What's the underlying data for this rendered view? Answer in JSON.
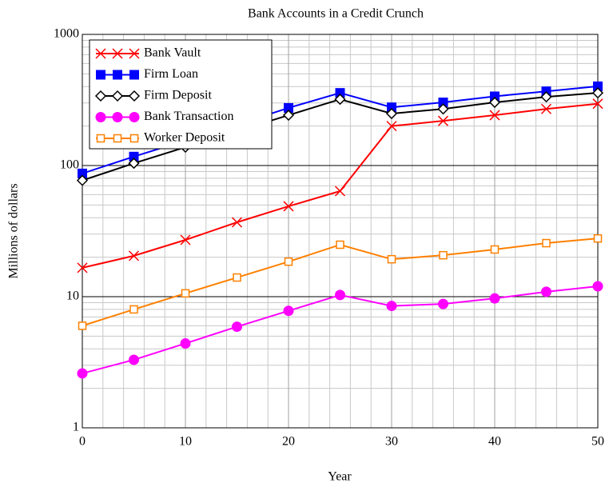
{
  "chart_data": {
    "type": "line",
    "title": "Bank Accounts in a Credit Crunch",
    "x_label": "Year",
    "y_label": "Millions of dollars",
    "x": [
      0,
      5,
      10,
      15,
      20,
      25,
      30,
      35,
      40,
      45,
      50
    ],
    "series": [
      {
        "name": "Bank Vault",
        "color": "#ff0000",
        "marker": "x",
        "values": [
          16.6,
          20.5,
          27.1,
          36.9,
          48.9,
          63.8,
          200,
          219,
          242,
          270,
          296
        ]
      },
      {
        "name": "Firm Loan",
        "color": "#0000ff",
        "marker": "square-filled",
        "values": [
          87,
          117,
          155,
          205,
          275,
          358,
          278,
          303,
          337,
          368,
          402
        ]
      },
      {
        "name": "Firm Deposit",
        "color": "#000000",
        "marker": "diamond-open",
        "values": [
          77,
          104,
          138,
          183,
          242,
          320,
          249,
          270,
          303,
          334,
          358
        ]
      },
      {
        "name": "Bank Transaction",
        "color": "#ff00ff",
        "marker": "circle-filled",
        "values": [
          2.6,
          3.3,
          4.4,
          5.9,
          7.8,
          10.3,
          8.5,
          8.8,
          9.7,
          10.9,
          12.0
        ]
      },
      {
        "name": "Worker Deposit",
        "color": "#ff8000",
        "marker": "square-open",
        "values": [
          6.0,
          8.0,
          10.6,
          14.0,
          18.5,
          24.9,
          19.3,
          20.7,
          22.9,
          25.6,
          27.8
        ]
      }
    ],
    "xlim": [
      0,
      50
    ],
    "xticks": [
      0,
      10,
      20,
      30,
      40,
      50
    ],
    "ylim": [
      1,
      1000
    ],
    "yticks": [
      1,
      10,
      100,
      1000
    ],
    "y_scale": "log",
    "grid": true,
    "minor_grid": true,
    "legend": "upper left"
  }
}
